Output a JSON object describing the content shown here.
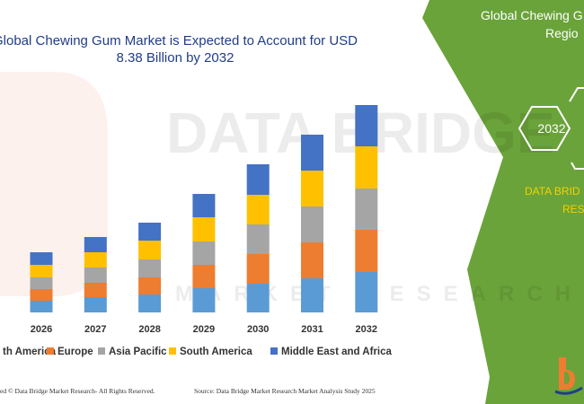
{
  "header": {
    "title_line1": "Global Chewing Gum Market is Expected to Account for USD",
    "title_line2": "8.38 Billion by 2032"
  },
  "side_panel": {
    "title_line1": "Global Chewing G",
    "title_line2": "Regio",
    "hex_year": "2032",
    "brand_line1": "DATA BRID",
    "brand_line2": "RES"
  },
  "watermark": {
    "line1": "DATA BRIDGE",
    "line2": "MARKET RESEARCH"
  },
  "footer": {
    "left": "ed © Data Bridge Market Research- All Rights Reserved.",
    "right": "Source: Data Bridge Market Research Market Analysis Study 2025"
  },
  "colors": {
    "panel_green": "#6aa33a",
    "hex_stroke": "#ffffff",
    "brand_yellow": "#f5d000",
    "title_blue": "#1f3d8a"
  },
  "chart_data": {
    "type": "bar",
    "stacked": true,
    "title": "Global Chewing Gum Market is Expected to Account for USD 8.38 Billion by 2032",
    "categories": [
      "2026",
      "2027",
      "2028",
      "2029",
      "2030",
      "2031",
      "2032"
    ],
    "series": [
      {
        "name": "th America",
        "color": "#5b9bd5",
        "values": [
          13,
          17,
          20,
          27,
          32,
          38,
          45
        ]
      },
      {
        "name": "Europe",
        "color": "#ed7d31",
        "values": [
          13,
          16,
          19,
          26,
          33,
          40,
          47
        ]
      },
      {
        "name": "Asia Pacific",
        "color": "#a5a5a5",
        "values": [
          13,
          17,
          20,
          26,
          33,
          40,
          46
        ]
      },
      {
        "name": "South America",
        "color": "#ffc000",
        "values": [
          14,
          17,
          21,
          27,
          33,
          40,
          47
        ]
      },
      {
        "name": "Middle East and Africa",
        "color": "#4472c4",
        "values": [
          14,
          17,
          20,
          26,
          34,
          40,
          46
        ]
      }
    ],
    "legend_position": "bottom",
    "grid": false,
    "xlabel": "",
    "ylabel": "",
    "ylim": [
      0,
      240
    ]
  }
}
